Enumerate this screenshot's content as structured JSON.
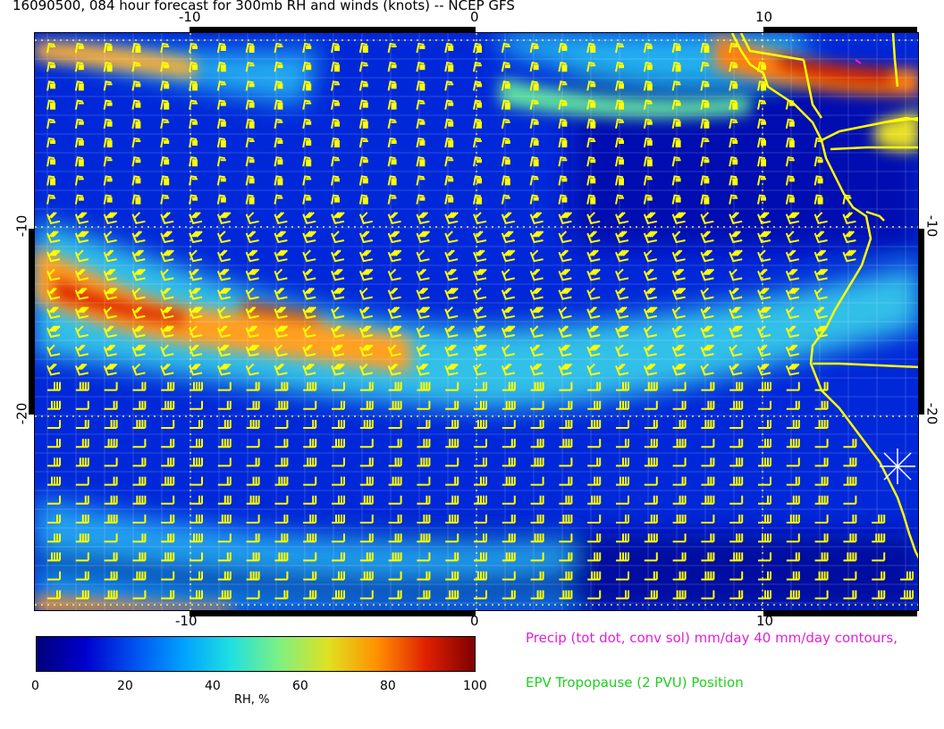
{
  "title": "16090500, 084 hour forecast for 300mb RH and winds (knots) -- NCEP GFS",
  "map": {
    "lon_range": [
      -15.5,
      15.5
    ],
    "lat_range": [
      -30,
      0
    ],
    "lon_ticks": [
      "-10",
      "0",
      "10"
    ],
    "lat_ticks": [
      "-10",
      "-20"
    ],
    "barb_color": "#ffff00",
    "coast_color": "#ffff00",
    "grid_color": "#ffffff"
  },
  "colorbar": {
    "label": "RH, %",
    "ticks": [
      "0",
      "20",
      "40",
      "60",
      "80",
      "100"
    ],
    "stops": [
      "#00007a",
      "#0000cd",
      "#0050f0",
      "#00a0ff",
      "#20e0e0",
      "#80f080",
      "#e0e020",
      "#ff9000",
      "#e02000",
      "#800000"
    ]
  },
  "legend": {
    "precip": "Precip (tot dot, conv sol) mm/day 40 mm/day contours,",
    "epv": "EPV Tropopause (2 PVU) Position"
  }
}
